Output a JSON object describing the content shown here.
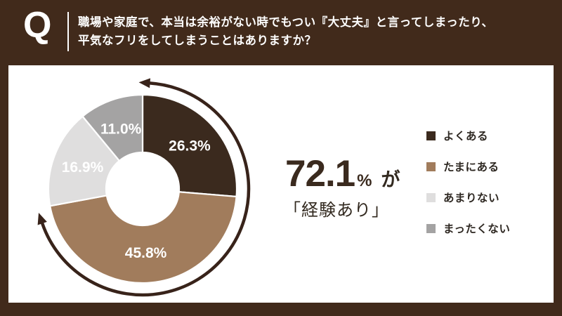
{
  "header": {
    "q_label": "Q",
    "question_line1": "職場や家庭で、本当は余裕がない時でもつい『大丈夫』と言ってしまったり、",
    "question_line2": "平気なフリをしてしまうことはありますか？"
  },
  "summary": {
    "value": "72.1",
    "unit": "%",
    "particle": "が",
    "caption": "「経験あり」"
  },
  "chart_data": {
    "type": "pie",
    "subtype": "donut",
    "direction": "clockwise",
    "start_angle_deg": 0,
    "categories": [
      "よくある",
      "たまにある",
      "あまりない",
      "まったくない"
    ],
    "values": [
      26.3,
      45.8,
      16.9,
      11.0
    ],
    "slice_labels": [
      "26.3%",
      "45.8%",
      "16.9%",
      "11.0%"
    ],
    "colors": [
      "#3b2a1e",
      "#a17c5c",
      "#dfdede",
      "#a4a3a3"
    ],
    "slice_label_color": "#ffffff",
    "legend_position": "right",
    "annotation": "72.1%が「経験あり」",
    "decoration": "double-headed circular arrow around donut"
  },
  "colors": {
    "background": "#412a1b",
    "card": "#ffffff",
    "accent_dark": "#3a2a1e",
    "arrow": "#38231a"
  }
}
